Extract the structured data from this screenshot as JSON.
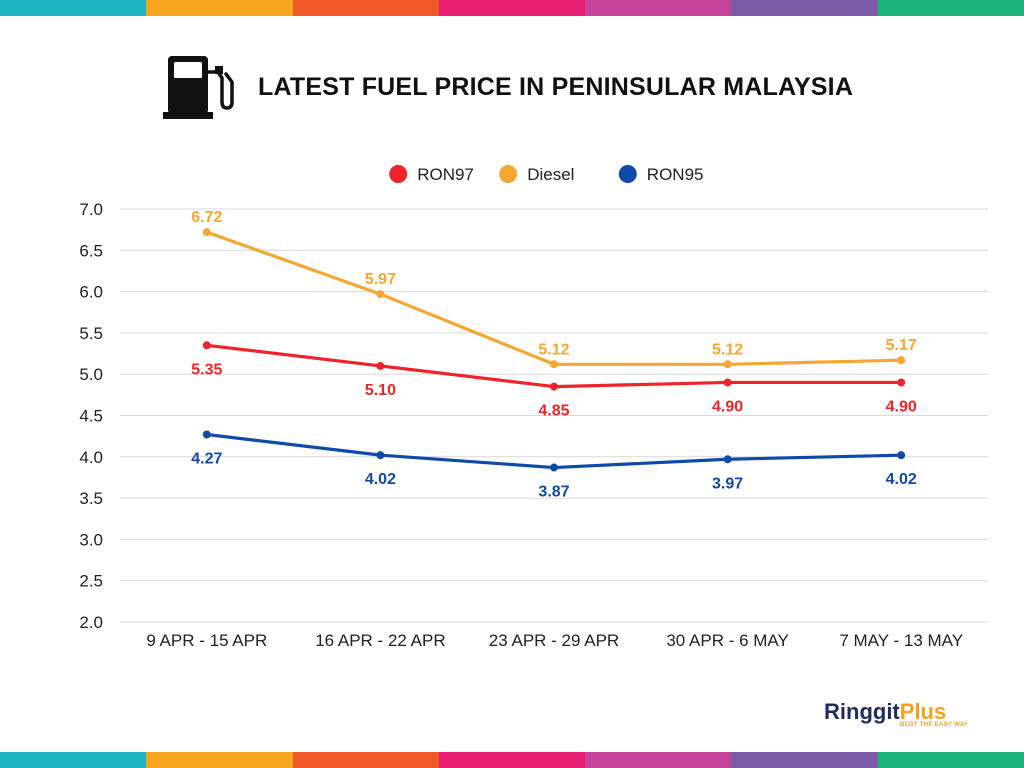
{
  "header": {
    "title": "LATEST FUEL PRICE IN PENINSULAR MALAYSIA",
    "icon": "fuel-pump-icon"
  },
  "stripe_colors": [
    "#1cb5c1",
    "#f7a51c",
    "#f05a26",
    "#e91e72",
    "#c6439a",
    "#7c5ba6",
    "#1ab37c"
  ],
  "logo": {
    "name_part1": "Ringgit",
    "name_part2": "Plus",
    "tagline": "BUDT THE EASY WAY"
  },
  "chart_data": {
    "type": "line",
    "title": "LATEST FUEL PRICE IN PENINSULAR MALAYSIA",
    "xlabel": "",
    "ylabel": "",
    "categories": [
      "9 APR - 15 APR",
      "16 APR - 22 APR",
      "23 APR - 29 APR",
      "30 APR - 6 MAY",
      "7 MAY - 13 MAY"
    ],
    "ylim": [
      2.0,
      7.0
    ],
    "yticks": [
      "2.0",
      "2.5",
      "3.0",
      "3.5",
      "4.0",
      "4.5",
      "5.0",
      "5.5",
      "6.0",
      "6.5",
      "7.0"
    ],
    "grid": true,
    "legend_position": "top-center",
    "series": [
      {
        "name": "RON97",
        "color": "#f0232a",
        "values": [
          5.35,
          5.1,
          4.85,
          4.9,
          4.9
        ],
        "labels": [
          "5.35",
          "5.10",
          "4.85",
          "4.90",
          "4.90"
        ],
        "label_position": "below"
      },
      {
        "name": "Diesel",
        "color": "#f6a733",
        "values": [
          6.72,
          5.97,
          5.12,
          5.12,
          5.17
        ],
        "labels": [
          "6.72",
          "5.97",
          "5.12",
          "5.12",
          "5.17"
        ],
        "label_position": "above"
      },
      {
        "name": "RON95",
        "color": "#0f4aa8",
        "values": [
          4.27,
          4.02,
          3.87,
          3.97,
          4.02
        ],
        "labels": [
          "4.27",
          "4.02",
          "3.87",
          "3.97",
          "4.02"
        ],
        "label_position": "below"
      }
    ]
  }
}
